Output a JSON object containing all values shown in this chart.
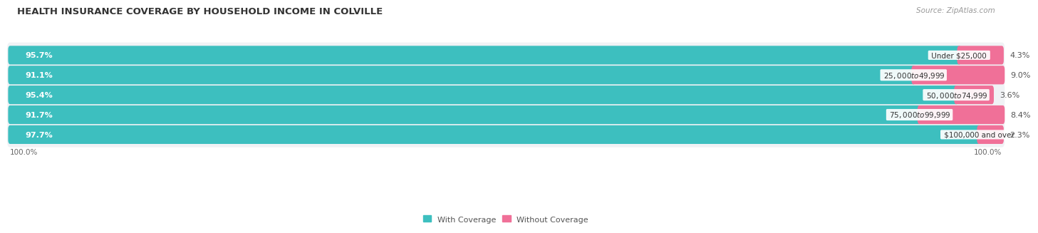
{
  "title": "HEALTH INSURANCE COVERAGE BY HOUSEHOLD INCOME IN COLVILLE",
  "source": "Source: ZipAtlas.com",
  "categories": [
    "Under $25,000",
    "$25,000 to $49,999",
    "$50,000 to $74,999",
    "$75,000 to $99,999",
    "$100,000 and over"
  ],
  "with_coverage": [
    95.7,
    91.1,
    95.4,
    91.7,
    97.7
  ],
  "without_coverage": [
    4.3,
    9.0,
    3.6,
    8.4,
    2.3
  ],
  "color_with": "#3DBFBF",
  "color_without": "#F07098",
  "bg_color": "#f0f2f5",
  "title_fontsize": 9.5,
  "label_fontsize": 8,
  "legend_fontsize": 8,
  "source_fontsize": 7.5
}
